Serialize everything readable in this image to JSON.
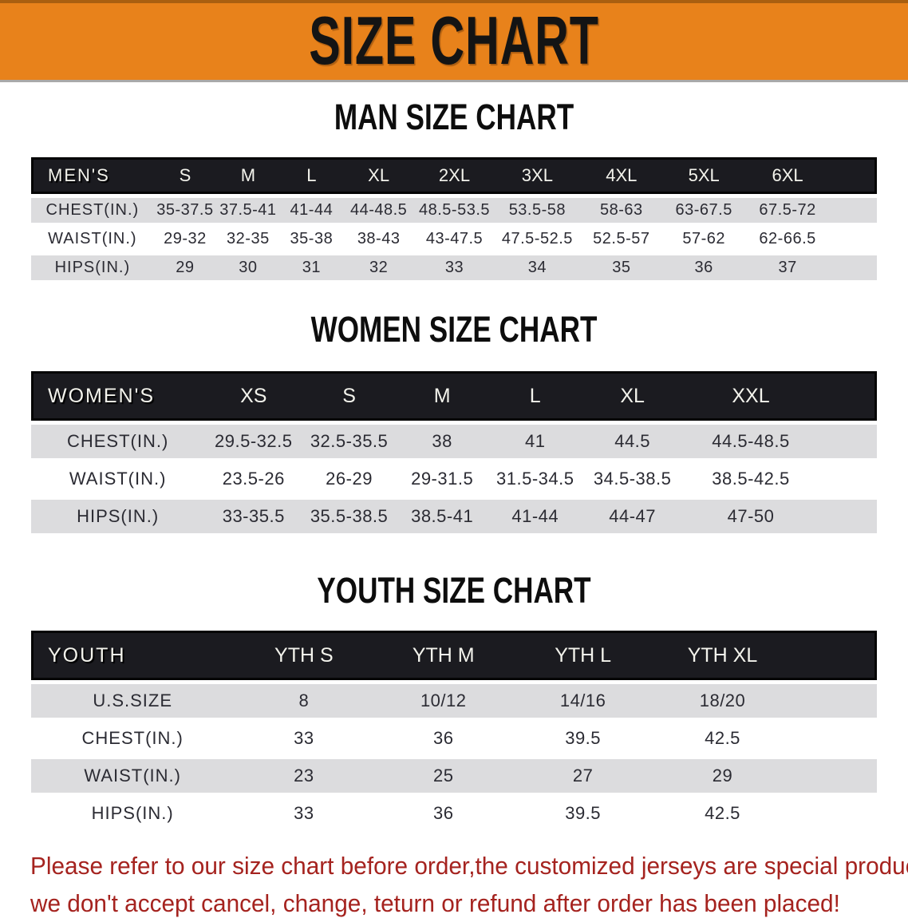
{
  "banner": {
    "title": "SIZE CHART",
    "bg_color": "#E8821B"
  },
  "sections": [
    {
      "id": "men",
      "heading": "MAN SIZE CHART",
      "table": {
        "header_label": "MEN'S",
        "columns": [
          "S",
          "M",
          "L",
          "XL",
          "2XL",
          "3XL",
          "4XL",
          "5XL",
          "6XL"
        ],
        "rows": [
          {
            "label": "CHEST(IN.)",
            "values": [
              "35-37.5",
              "37.5-41",
              "41-44",
              "44-48.5",
              "48.5-53.5",
              "53.5-58",
              "58-63",
              "63-67.5",
              "67.5-72"
            ]
          },
          {
            "label": "WAIST(IN.)",
            "values": [
              "29-32",
              "32-35",
              "35-38",
              "38-43",
              "43-47.5",
              "47.5-52.5",
              "52.5-57",
              "57-62",
              "62-66.5"
            ]
          },
          {
            "label": "HIPS(IN.)",
            "values": [
              "29",
              "30",
              "31",
              "32",
              "33",
              "34",
              "35",
              "36",
              "37"
            ]
          }
        ]
      }
    },
    {
      "id": "women",
      "heading": "WOMEN SIZE CHART",
      "table": {
        "header_label": "WOMEN'S",
        "columns": [
          "XS",
          "S",
          "M",
          "L",
          "XL",
          "XXL"
        ],
        "rows": [
          {
            "label": "CHEST(IN.)",
            "values": [
              "29.5-32.5",
              "32.5-35.5",
              "38",
              "41",
              "44.5",
              "44.5-48.5"
            ]
          },
          {
            "label": "WAIST(IN.)",
            "values": [
              "23.5-26",
              "26-29",
              "29-31.5",
              "31.5-34.5",
              "34.5-38.5",
              "38.5-42.5"
            ]
          },
          {
            "label": "HIPS(IN.)",
            "values": [
              "33-35.5",
              "35.5-38.5",
              "38.5-41",
              "41-44",
              "44-47",
              "47-50"
            ]
          }
        ]
      }
    },
    {
      "id": "youth",
      "heading": "YOUTH SIZE CHART",
      "table": {
        "header_label": "YOUTH",
        "columns": [
          "YTH S",
          "YTH M",
          "YTH L",
          "YTH XL"
        ],
        "rows": [
          {
            "label": "U.S.SIZE",
            "values": [
              "8",
              "10/12",
              "14/16",
              "18/20"
            ]
          },
          {
            "label": "CHEST(IN.)",
            "values": [
              "33",
              "36",
              "39.5",
              "42.5"
            ]
          },
          {
            "label": "WAIST(IN.)",
            "values": [
              "23",
              "25",
              "27",
              "29"
            ]
          },
          {
            "label": "HIPS(IN.)",
            "values": [
              "33",
              "36",
              "39.5",
              "42.5"
            ]
          }
        ]
      }
    }
  ],
  "footnote": {
    "line1": "Please refer to our size chart before order,the customized jerseys are special products,",
    "line2": "we don't accept cancel, change, teturn or refund after order has been placed!",
    "color": "#A5231F"
  },
  "colors": {
    "banner_orange": "#E8821B",
    "header_bar_black": "#1B1B20",
    "row_stripe_gray": "#DCDCDE",
    "footnote_red": "#A5231F"
  }
}
